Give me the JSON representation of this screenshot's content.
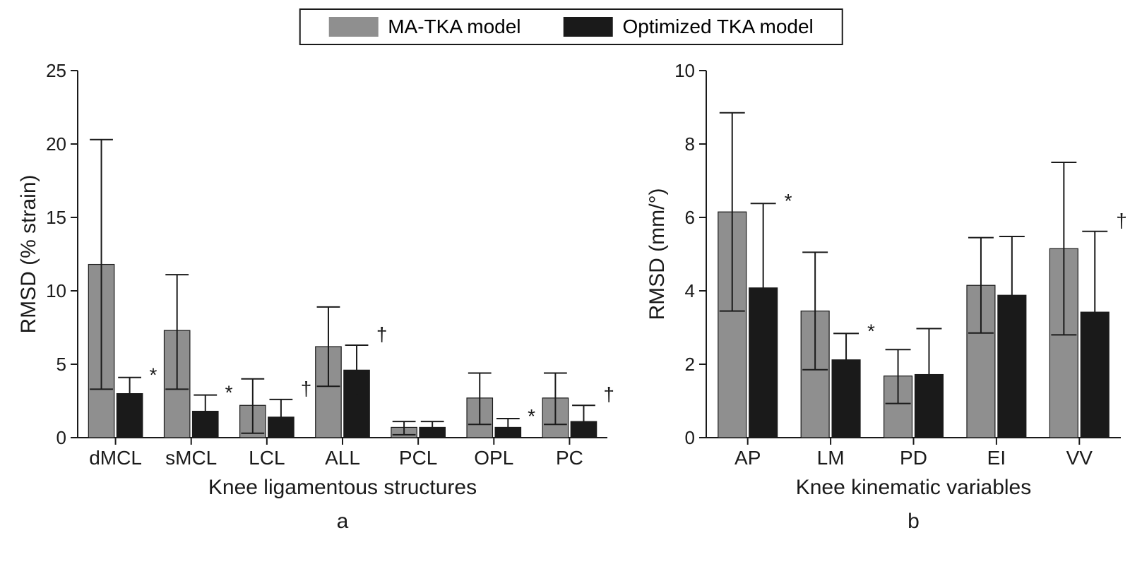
{
  "legend": {
    "items": [
      {
        "label": "MA-TKA model",
        "color": "#8f8f8f"
      },
      {
        "label": "Optimized TKA model",
        "color": "#1a1a1a"
      }
    ],
    "border_color": "#1a1a1a",
    "background": "#ffffff",
    "fontsize": 28
  },
  "panel_a": {
    "type": "bar",
    "panel_label": "a",
    "x_title": "Knee ligamentous structures",
    "y_title": "RMSD (% strain)",
    "categories": [
      "dMCL",
      "sMCL",
      "LCL",
      "ALL",
      "PCL",
      "OPL",
      "PC"
    ],
    "series": [
      {
        "name": "MA-TKA model",
        "color": "#8f8f8f",
        "values": [
          11.8,
          7.3,
          2.2,
          6.2,
          0.7,
          2.7,
          2.7
        ],
        "err_low": [
          8.5,
          4.0,
          1.9,
          2.7,
          0.5,
          1.8,
          1.8
        ],
        "err_high": [
          8.5,
          3.8,
          1.8,
          2.7,
          0.4,
          1.7,
          1.7
        ]
      },
      {
        "name": "Optimized TKA model",
        "color": "#1a1a1a",
        "values": [
          3.0,
          1.8,
          1.4,
          4.6,
          0.7,
          0.7,
          1.1
        ],
        "err_low": [
          1.2,
          1.1,
          1.0,
          1.7,
          0.5,
          0.5,
          1.0
        ],
        "err_high": [
          1.1,
          1.1,
          1.2,
          1.7,
          0.4,
          0.6,
          1.1
        ],
        "sig": [
          "*",
          "*",
          "†",
          "†",
          "",
          "*",
          "†"
        ]
      }
    ],
    "ylim": [
      0,
      25
    ],
    "ytick_step": 5,
    "bar_colors": [
      "#8f8f8f",
      "#1a1a1a"
    ],
    "bar_width": 0.34,
    "background_color": "#ffffff",
    "fontsize_ticks": 26,
    "fontsize_labels": 28,
    "fontsize_title": 30
  },
  "panel_b": {
    "type": "bar",
    "panel_label": "b",
    "x_title": "Knee kinematic variables",
    "y_title": "RMSD (mm/°)",
    "categories": [
      "AP",
      "LM",
      "PD",
      "EI",
      "VV"
    ],
    "series": [
      {
        "name": "MA-TKA model",
        "color": "#8f8f8f",
        "values": [
          6.15,
          3.45,
          1.68,
          4.15,
          5.15
        ],
        "err_low": [
          2.7,
          1.6,
          0.75,
          1.3,
          2.35
        ],
        "err_high": [
          2.7,
          1.6,
          0.72,
          1.3,
          2.35
        ]
      },
      {
        "name": "Optimized TKA model",
        "color": "#1a1a1a",
        "values": [
          4.08,
          2.12,
          1.72,
          3.88,
          3.42
        ],
        "err_low": [
          1.5,
          0.72,
          1.0,
          1.6,
          1.6
        ],
        "err_high": [
          2.3,
          0.72,
          1.25,
          1.6,
          2.2
        ],
        "sig": [
          "*",
          "*",
          "",
          "",
          "†"
        ]
      }
    ],
    "ylim": [
      0,
      10
    ],
    "ytick_step": 2,
    "bar_colors": [
      "#8f8f8f",
      "#1a1a1a"
    ],
    "bar_width": 0.34,
    "background_color": "#ffffff",
    "fontsize_ticks": 26,
    "fontsize_labels": 28,
    "fontsize_title": 30
  }
}
